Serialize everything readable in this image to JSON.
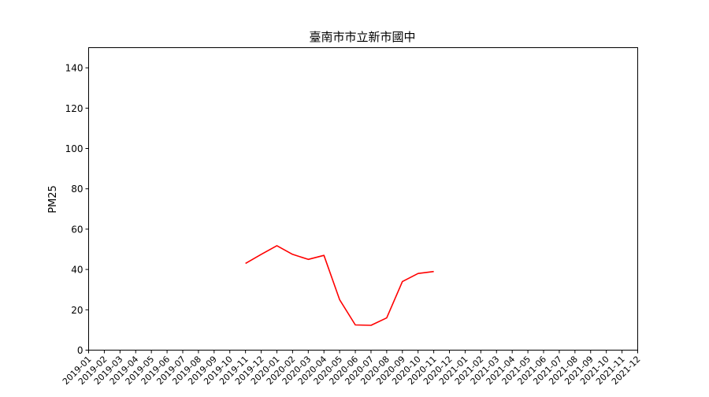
{
  "chart_data": {
    "type": "line",
    "title": "臺南市市立新市國中",
    "xlabel": "",
    "ylabel": "PM25",
    "x": [
      "2019-01",
      "2019-02",
      "2019-03",
      "2019-04",
      "2019-05",
      "2019-06",
      "2019-07",
      "2019-08",
      "2019-09",
      "2019-10",
      "2019-11",
      "2019-12",
      "2020-01",
      "2020-02",
      "2020-03",
      "2020-04",
      "2020-05",
      "2020-06",
      "2020-07",
      "2020-08",
      "2020-09",
      "2020-10",
      "2020-11",
      "2020-12",
      "2021-01",
      "2021-02",
      "2021-03",
      "2021-04",
      "2021-05",
      "2021-06",
      "2021-07",
      "2021-08",
      "2021-09",
      "2021-10",
      "2021-11",
      "2021-12"
    ],
    "ylim": [
      0,
      150
    ],
    "yticks": [
      0,
      20,
      40,
      60,
      80,
      100,
      120,
      140
    ],
    "grid": false,
    "series": [
      {
        "color": "#ff0000",
        "points": [
          {
            "x": "2019-11",
            "y": 43.0
          },
          {
            "x": "2019-12",
            "y": 47.5
          },
          {
            "x": "2020-01",
            "y": 51.8
          },
          {
            "x": "2020-02",
            "y": 47.5
          },
          {
            "x": "2020-03",
            "y": 45.0
          },
          {
            "x": "2020-04",
            "y": 47.0
          },
          {
            "x": "2020-05",
            "y": 25.0
          },
          {
            "x": "2020-06",
            "y": 12.5
          },
          {
            "x": "2020-07",
            "y": 12.3
          },
          {
            "x": "2020-08",
            "y": 16.0
          },
          {
            "x": "2020-09",
            "y": 34.0
          },
          {
            "x": "2020-10",
            "y": 38.0
          },
          {
            "x": "2020-11",
            "y": 39.0
          }
        ]
      }
    ]
  }
}
